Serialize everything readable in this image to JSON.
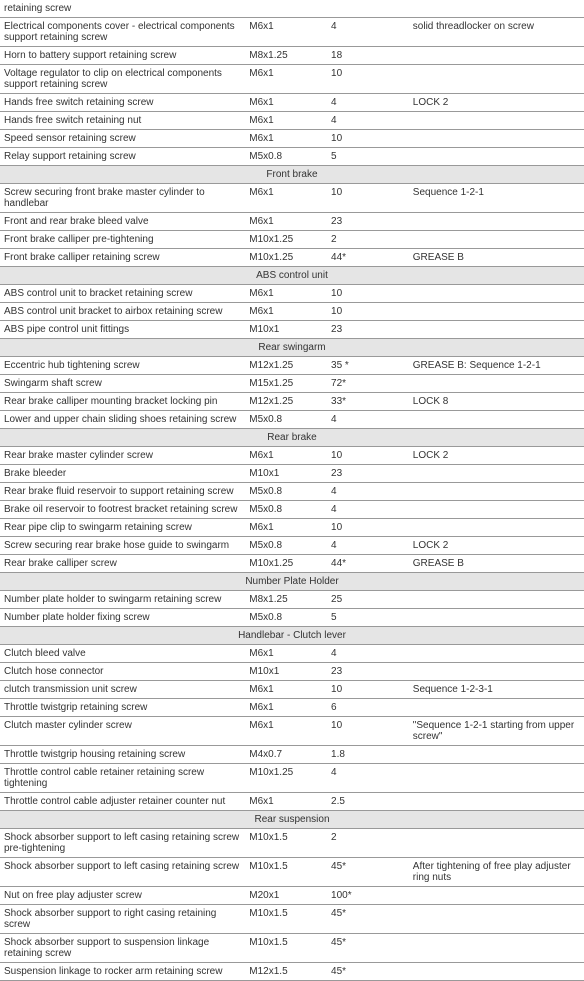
{
  "table": {
    "sections": [
      {
        "header": null,
        "rows": [
          {
            "desc": "retaining screw",
            "thread": "",
            "torque": "",
            "note": ""
          },
          {
            "desc": "Electrical components cover - electrical components support retaining screw",
            "thread": "M6x1",
            "torque": "4",
            "note": "solid threadlocker on screw"
          },
          {
            "desc": "Horn to battery support retaining screw",
            "thread": "M8x1.25",
            "torque": "18",
            "note": ""
          },
          {
            "desc": "Voltage regulator to clip on electrical components support retaining screw",
            "thread": "M6x1",
            "torque": "10",
            "note": ""
          },
          {
            "desc": "Hands free switch retaining screw",
            "thread": "M6x1",
            "torque": "4",
            "note": "LOCK 2"
          },
          {
            "desc": "Hands free switch retaining nut",
            "thread": "M6x1",
            "torque": "4",
            "note": ""
          },
          {
            "desc": "Speed sensor retaining screw",
            "thread": "M6x1",
            "torque": "10",
            "note": ""
          },
          {
            "desc": "Relay support retaining screw",
            "thread": "M5x0.8",
            "torque": "5",
            "note": ""
          }
        ]
      },
      {
        "header": "Front brake",
        "rows": [
          {
            "desc": "Screw securing front brake master cylinder to handlebar",
            "thread": "M6x1",
            "torque": "10",
            "note": "Sequence 1-2-1"
          },
          {
            "desc": "Front and rear brake bleed valve",
            "thread": "M6x1",
            "torque": "23",
            "note": ""
          },
          {
            "desc": "Front brake calliper pre-tightening",
            "thread": "M10x1.25",
            "torque": "2",
            "note": ""
          },
          {
            "desc": "Front brake calliper retaining screw",
            "thread": "M10x1.25",
            "torque": "44*",
            "note": "GREASE B"
          }
        ]
      },
      {
        "header": "ABS control unit",
        "rows": [
          {
            "desc": "ABS control unit to bracket retaining screw",
            "thread": "M6x1",
            "torque": "10",
            "note": ""
          },
          {
            "desc": "ABS control unit bracket to airbox retaining screw",
            "thread": "M6x1",
            "torque": "10",
            "note": ""
          },
          {
            "desc": "ABS pipe control unit fittings",
            "thread": "M10x1",
            "torque": "23",
            "note": ""
          }
        ]
      },
      {
        "header": "Rear swingarm",
        "rows": [
          {
            "desc": "Eccentric hub tightening screw",
            "thread": "M12x1.25",
            "torque": "35 *",
            "note": "GREASE B: Sequence 1-2-1"
          },
          {
            "desc": "Swingarm shaft screw",
            "thread": "M15x1.25",
            "torque": "72*",
            "note": ""
          },
          {
            "desc": "Rear brake calliper mounting bracket locking pin",
            "thread": "M12x1.25",
            "torque": "33*",
            "note": "LOCK 8"
          },
          {
            "desc": "Lower and upper chain sliding shoes retaining screw",
            "thread": "M5x0.8",
            "torque": "4",
            "note": ""
          }
        ]
      },
      {
        "header": "Rear brake",
        "rows": [
          {
            "desc": "Rear brake master cylinder screw",
            "thread": "M6x1",
            "torque": "10",
            "note": "LOCK 2"
          },
          {
            "desc": "Brake bleeder",
            "thread": "M10x1",
            "torque": "23",
            "note": ""
          },
          {
            "desc": "Rear brake fluid reservoir to support retaining screw",
            "thread": "M5x0.8",
            "torque": "4",
            "note": ""
          },
          {
            "desc": "Brake oil reservoir to footrest bracket retaining screw",
            "thread": "M5x0.8",
            "torque": "4",
            "note": ""
          },
          {
            "desc": "Rear pipe clip to swingarm retaining screw",
            "thread": "M6x1",
            "torque": "10",
            "note": ""
          },
          {
            "desc": "Screw securing rear brake hose guide to swingarm",
            "thread": "M5x0.8",
            "torque": "4",
            "note": "LOCK 2"
          },
          {
            "desc": "Rear brake calliper screw",
            "thread": "M10x1.25",
            "torque": "44*",
            "note": "GREASE B"
          }
        ]
      },
      {
        "header": "Number Plate Holder",
        "rows": [
          {
            "desc": "Number plate holder to swingarm retaining screw",
            "thread": "M8x1.25",
            "torque": "25",
            "note": ""
          },
          {
            "desc": "Number plate holder fixing screw",
            "thread": "M5x0.8",
            "torque": "5",
            "note": ""
          }
        ]
      },
      {
        "header": "Handlebar - Clutch lever",
        "rows": [
          {
            "desc": "Clutch bleed valve",
            "thread": "M6x1",
            "torque": "4",
            "note": ""
          },
          {
            "desc": "Clutch hose connector",
            "thread": "M10x1",
            "torque": "23",
            "note": ""
          },
          {
            "desc": "clutch transmission unit screw",
            "thread": "M6x1",
            "torque": "10",
            "note": "Sequence 1-2-3-1"
          },
          {
            "desc": "Throttle twistgrip retaining screw",
            "thread": "M6x1",
            "torque": "6",
            "note": ""
          },
          {
            "desc": "Clutch master cylinder screw",
            "thread": "M6x1",
            "torque": "10",
            "note": "\"Sequence 1-2-1 starting from upper screw\""
          },
          {
            "desc": "Throttle twistgrip housing retaining screw",
            "thread": "M4x0.7",
            "torque": "1.8",
            "note": ""
          },
          {
            "desc": "Throttle control cable retainer retaining screw tightening",
            "thread": "M10x1.25",
            "torque": "4",
            "note": ""
          },
          {
            "desc": "Throttle control cable adjuster retainer counter nut",
            "thread": "M6x1",
            "torque": "2.5",
            "note": ""
          }
        ]
      },
      {
        "header": "Rear suspension",
        "rows": [
          {
            "desc": "Shock absorber support to left casing retaining screw pre-tightening",
            "thread": "M10x1.5",
            "torque": "2",
            "note": ""
          },
          {
            "desc": "Shock absorber support to left casing retaining screw",
            "thread": "M10x1.5",
            "torque": "45*",
            "note": "After tightening of free play adjuster ring nuts"
          },
          {
            "desc": "Nut on free play adjuster screw",
            "thread": "M20x1",
            "torque": "100*",
            "note": ""
          },
          {
            "desc": "Shock absorber support to right casing retaining screw",
            "thread": "M10x1.5",
            "torque": "45*",
            "note": ""
          },
          {
            "desc": "Shock absorber support to suspension linkage retaining screw",
            "thread": "M10x1.5",
            "torque": "45*",
            "note": ""
          },
          {
            "desc": "Suspension linkage to rocker arm retaining screw",
            "thread": "M12x1.5",
            "torque": "45*",
            "note": ""
          }
        ]
      }
    ]
  }
}
